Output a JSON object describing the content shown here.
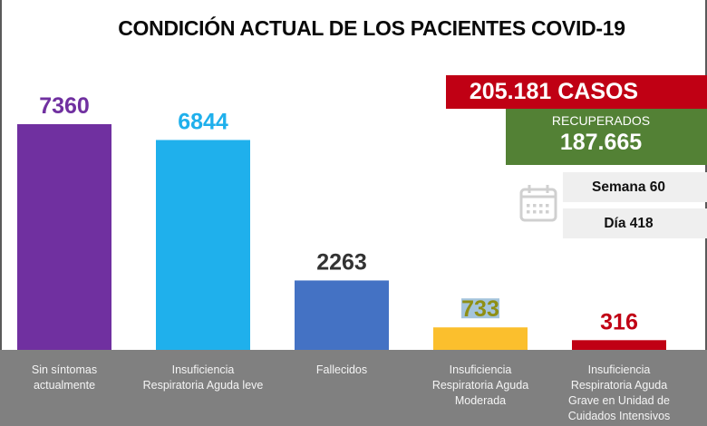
{
  "chart_data": {
    "type": "bar",
    "title": "CONDICIÓN ACTUAL DE LOS PACIENTES COVID-19",
    "xlabel": "",
    "ylabel": "",
    "ylim": [
      0,
      7360
    ],
    "grid": false,
    "legend": "none",
    "categories": [
      "Sin síntomas actualmente",
      "Insuficiencia Respiratoria Aguda leve",
      "Fallecidos",
      "Insuficiencia Respiratoria Aguda Moderada",
      "Insuficiencia Respiratoria Aguda Grave en Unidad de Cuidados Intensivos"
    ],
    "category_lines": [
      [
        "Sin síntomas",
        "actualmente"
      ],
      [
        "Insuficiencia",
        "Respiratoria Aguda leve"
      ],
      [
        "Fallecidos"
      ],
      [
        "Insuficiencia",
        "Respiratoria Aguda",
        "Moderada"
      ],
      [
        "Insuficiencia",
        "Respiratoria Aguda",
        "Grave en Unidad de",
        "Cuidados Intensivos"
      ]
    ],
    "values": [
      7360,
      6844,
      2263,
      733,
      316
    ],
    "data_labels": [
      "7360",
      "6844",
      "2263",
      "733",
      "316"
    ],
    "bar_colors": [
      "#7030a0",
      "#1fb0ec",
      "#4472c4",
      "#fbbf2d",
      "#c00014"
    ],
    "label_colors": [
      "#7030a0",
      "#1fb0ec",
      "#333333",
      "#8f8f14",
      "#c00014"
    ]
  },
  "summary": {
    "casos": "205.181 CASOS",
    "recuperados_label": "RECUPERADOS",
    "recuperados_value": "187.665",
    "semana": "Semana 60",
    "dia": "Día 418"
  },
  "icons": {
    "calendar": "calendar-icon"
  }
}
